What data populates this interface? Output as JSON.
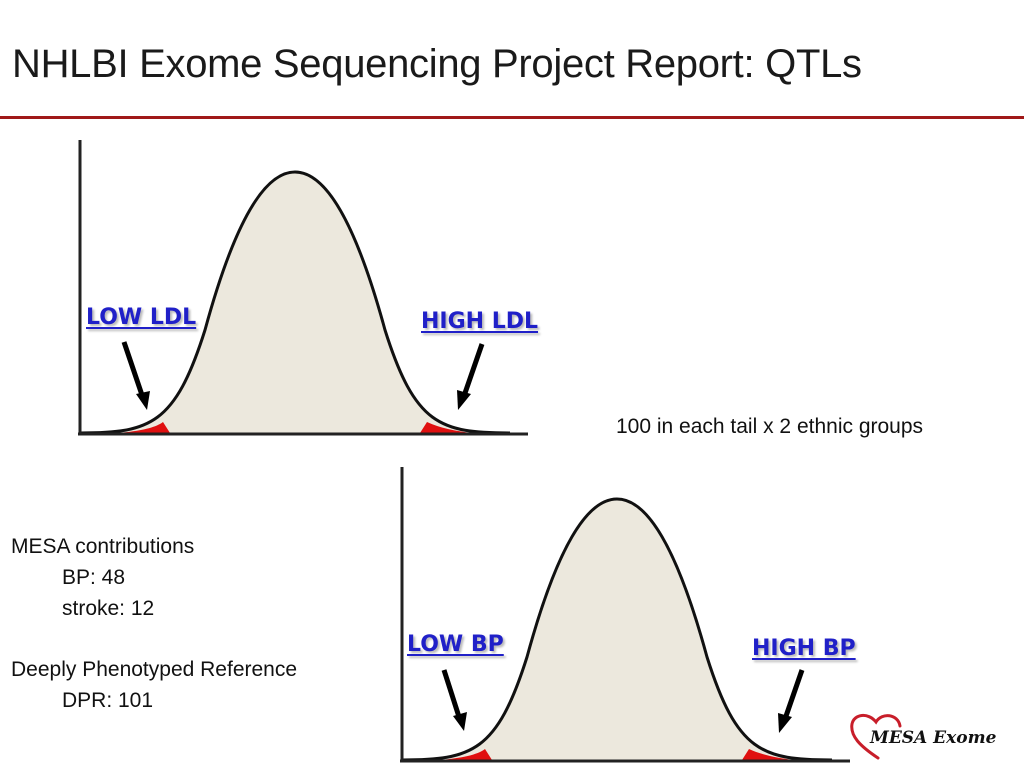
{
  "title": "NHLBI Exome Sequencing Project Report: QTLs",
  "colors": {
    "rule": "#a01818",
    "label": "#2020c8",
    "tail": "#e01010",
    "curve_fill": "#ece8dd",
    "axis": "#222222",
    "logo_heart": "#c81e2a"
  },
  "ldl_distribution": {
    "low_label": "LOW LDL",
    "high_label": "HIGH LDL"
  },
  "bp_distribution": {
    "low_label": "LOW BP",
    "high_label": "HIGH BP"
  },
  "tail_note": "100 in each tail x 2 ethnic groups",
  "mesa": {
    "heading": "MESA contributions",
    "bp": "BP: 48",
    "stroke": "stroke: 12"
  },
  "dpr": {
    "heading": "Deeply Phenotyped Reference",
    "value": "DPR: 101"
  },
  "logo": {
    "text": "MESA Exome"
  }
}
